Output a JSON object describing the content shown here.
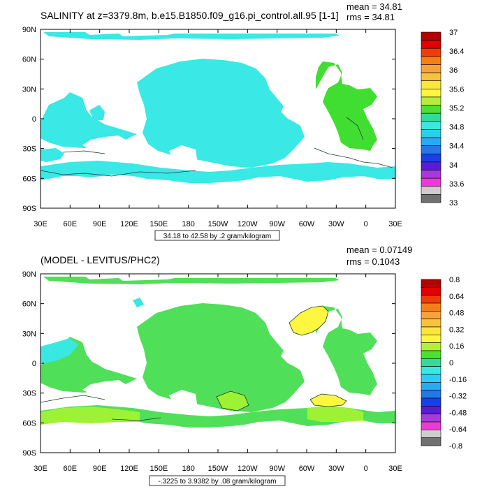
{
  "chart_data": [
    {
      "type": "map-contour",
      "title": "SALINITY at z=3379.8m, b.e15.B1850.f09_g16.pi_control.all.95 [1-1]",
      "stats": {
        "mean": "mean = 34.81",
        "rms": "rms = 34.81"
      },
      "x_ticks": [
        "30E",
        "60E",
        "90E",
        "120E",
        "150E",
        "180",
        "150W",
        "120W",
        "90W",
        "60W",
        "30W",
        "0",
        "30E"
      ],
      "y_ticks": [
        "90N",
        "60N",
        "30N",
        "0",
        "30S",
        "60S",
        "90S"
      ],
      "range_label": "34.18 to 42.58 by .2 gram/kilogram",
      "colorbar": {
        "labels": [
          "37",
          "36.4",
          "36",
          "35.6",
          "35.2",
          "34.8",
          "34.4",
          "34",
          "33.6",
          "33"
        ],
        "colors": [
          "#b40000",
          "#e00000",
          "#f03c0a",
          "#f57f17",
          "#f7a23a",
          "#f7c240",
          "#fbe63b",
          "#fff640",
          "#b4ed3c",
          "#4ce12e",
          "#2fdc9a",
          "#39e8e0",
          "#2ecdf0",
          "#2aaaf2",
          "#2478e6",
          "#1a3fe4",
          "#5a1bd8",
          "#a63cd6",
          "#ee3ad4",
          "#cdcdcd",
          "#707070"
        ],
        "dominant_fill": "#3ae8e6",
        "accent_fill": "#40de30"
      }
    },
    {
      "type": "map-contour",
      "title": "(MODEL - LEVITUS/PHC2)",
      "stats": {
        "mean": "mean = 0.07149",
        "rms": "rms = 0.1043"
      },
      "x_ticks": [
        "30E",
        "60E",
        "90E",
        "120E",
        "150E",
        "180",
        "150W",
        "120W",
        "90W",
        "60W",
        "30W",
        "0",
        "30E"
      ],
      "y_ticks": [
        "90N",
        "60N",
        "30N",
        "0",
        "30S",
        "60S",
        "90S"
      ],
      "range_label": "-.3225 to 3.9382 by .08 gram/kilogram",
      "colorbar": {
        "labels": [
          "0.8",
          "0.64",
          "0.48",
          "0.32",
          "0.16",
          "0",
          "-0.16",
          "-0.32",
          "-0.48",
          "-0.64",
          "-0.8"
        ],
        "colors": [
          "#b40000",
          "#e00000",
          "#f03c0a",
          "#f57f17",
          "#f7a23a",
          "#f7c240",
          "#fbe63b",
          "#fff640",
          "#b4ed3c",
          "#4ce12e",
          "#2fdc9a",
          "#39e8e0",
          "#2ecdf0",
          "#2aaaf2",
          "#2478e6",
          "#1a3fe4",
          "#5a1bd8",
          "#a63cd6",
          "#ee3ad4",
          "#cdcdcd",
          "#707070"
        ],
        "dominant_fill": "#50df58",
        "accent_fill": "#9ef236"
      }
    }
  ]
}
